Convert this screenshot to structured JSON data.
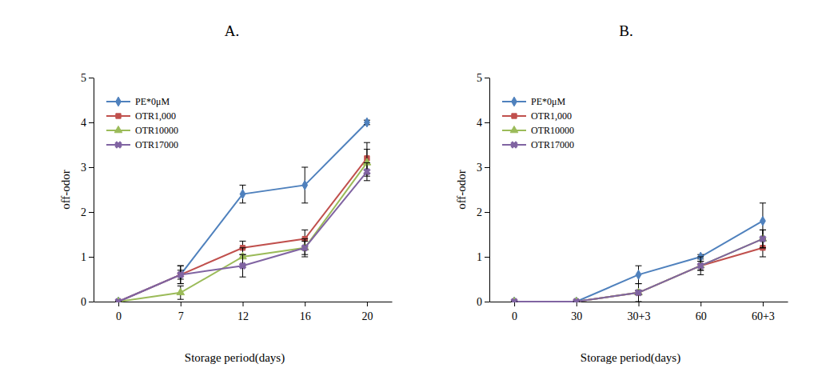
{
  "chart_data": [
    {
      "type": "line",
      "title": "A.",
      "x_label": "Storage period(days)",
      "y_label": "off-odor",
      "categories": [
        "0",
        "7",
        "12",
        "16",
        "20"
      ],
      "ylim": [
        0,
        5
      ],
      "yticks": [
        0,
        1,
        2,
        3,
        4,
        5
      ],
      "grid": false,
      "legend": "upper left",
      "series": [
        {
          "name": "PE*0μM",
          "color": "#4f81bd",
          "marker": "diamond",
          "values": [
            0,
            0.6,
            2.4,
            2.6,
            4.0
          ],
          "errors": [
            0,
            0.2,
            0.2,
            0.4,
            0.05
          ]
        },
        {
          "name": "OTR1,000",
          "color": "#c0504d",
          "marker": "square",
          "values": [
            0,
            0.6,
            1.2,
            1.4,
            3.2
          ],
          "errors": [
            0,
            0.1,
            0.15,
            0.2,
            0.35
          ]
        },
        {
          "name": "OTR10000",
          "color": "#9bbb59",
          "marker": "triangle",
          "values": [
            0,
            0.2,
            1.0,
            1.2,
            3.1
          ],
          "errors": [
            0,
            0.15,
            0.2,
            0.2,
            0.3
          ]
        },
        {
          "name": "OTR17000",
          "color": "#8064a2",
          "marker": "cross",
          "values": [
            0,
            0.6,
            0.8,
            1.2,
            2.9
          ],
          "errors": [
            0,
            0.2,
            0.25,
            0.15,
            0.2
          ]
        }
      ]
    },
    {
      "type": "line",
      "title": "B.",
      "x_label": "Storage period(days)",
      "y_label": "off-odor",
      "categories": [
        "0",
        "30",
        "30+3",
        "60",
        "60+3"
      ],
      "ylim": [
        0,
        5
      ],
      "yticks": [
        0,
        1,
        2,
        3,
        4,
        5
      ],
      "grid": false,
      "legend": "upper left",
      "series": [
        {
          "name": "PE*0μM",
          "color": "#4f81bd",
          "marker": "diamond",
          "values": [
            0,
            0,
            0.6,
            1.0,
            1.8
          ],
          "errors": [
            0,
            0,
            0.2,
            0.05,
            0.4
          ]
        },
        {
          "name": "OTR1,000",
          "color": "#c0504d",
          "marker": "square",
          "values": [
            0,
            0,
            0.2,
            0.8,
            1.2
          ],
          "errors": [
            0,
            0,
            0.2,
            0.2,
            0.2
          ]
        },
        {
          "name": "OTR10000",
          "color": "#9bbb59",
          "marker": "triangle",
          "values": [
            0,
            0,
            0.2,
            0.8,
            1.4
          ],
          "errors": [
            0,
            0,
            0.05,
            0.1,
            0.2
          ]
        },
        {
          "name": "OTR17000",
          "color": "#8064a2",
          "marker": "cross",
          "values": [
            0,
            0,
            0.2,
            0.8,
            1.4
          ],
          "errors": [
            0,
            0,
            0.05,
            0.1,
            0.2
          ]
        }
      ]
    }
  ]
}
